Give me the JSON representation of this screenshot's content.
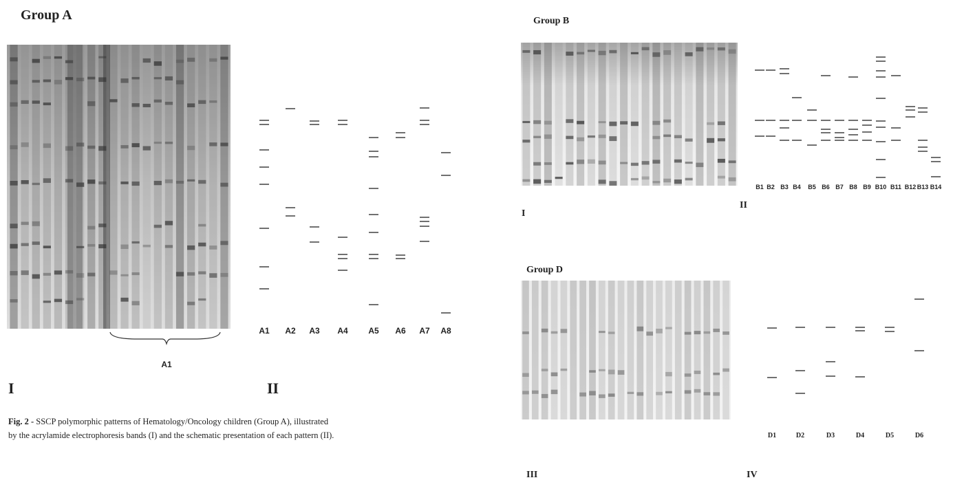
{
  "group_a": {
    "title": "Group A",
    "brace_label": "A1",
    "panel_labels": [
      "I",
      "II"
    ],
    "lanes": [
      "A1",
      "A2",
      "A3",
      "A4",
      "A5",
      "A6",
      "A7",
      "A8"
    ]
  },
  "group_b": {
    "title": "Group B",
    "panel_labels": [
      "I",
      "II"
    ],
    "lanes": [
      "B1",
      "B2",
      "B3",
      "B4",
      "B5",
      "B6",
      "B7",
      "B8",
      "B9",
      "B10",
      "B11",
      "B12",
      "B13",
      "B14"
    ]
  },
  "group_d": {
    "title": "Group D",
    "panel_labels": [
      "III",
      "IV"
    ],
    "lanes": [
      "D1",
      "D2",
      "D3",
      "D4",
      "D5",
      "D6"
    ]
  },
  "caption": {
    "label": "Fig. 2 -",
    "lines": [
      "SSCP polymorphic patterns of Hematology/Oncology children (Group A), illustrated",
      "by the acrylamide electrophoresis bands (I) and the schematic presentation of each pattern (II)."
    ]
  }
}
